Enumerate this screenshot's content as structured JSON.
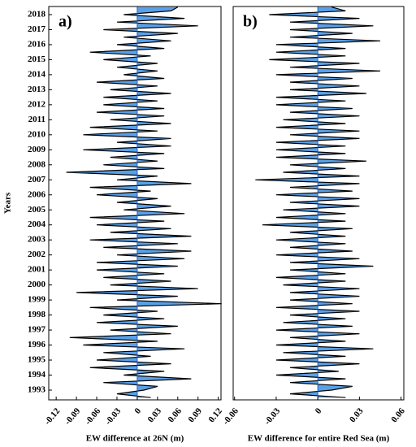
{
  "chart_data": [
    {
      "type": "area",
      "orientation": "vertical",
      "label": "a)",
      "xlabel": "Years",
      "ylabel": "EW difference at 26N (m)",
      "color": "#5aa0e8",
      "line_color": "#000000",
      "x": [
        1992.5,
        1992.75,
        1993,
        1993.25,
        1993.5,
        1993.75,
        1994,
        1994.25,
        1994.5,
        1994.75,
        1995,
        1995.25,
        1995.5,
        1995.75,
        1996,
        1996.25,
        1996.5,
        1996.75,
        1997,
        1997.25,
        1997.5,
        1997.75,
        1998,
        1998.25,
        1998.5,
        1998.75,
        1999,
        1999.25,
        1999.5,
        1999.75,
        2000,
        2000.25,
        2000.5,
        2000.75,
        2001,
        2001.25,
        2001.5,
        2001.75,
        2002,
        2002.25,
        2002.5,
        2002.75,
        2003,
        2003.25,
        2003.5,
        2003.75,
        2004,
        2004.25,
        2004.5,
        2004.75,
        2005,
        2005.25,
        2005.5,
        2005.75,
        2006,
        2006.25,
        2006.5,
        2006.75,
        2007,
        2007.25,
        2007.5,
        2007.75,
        2008,
        2008.25,
        2008.5,
        2008.75,
        2009,
        2009.25,
        2009.5,
        2009.75,
        2010,
        2010.25,
        2010.5,
        2010.75,
        2011,
        2011.25,
        2011.5,
        2011.75,
        2012,
        2012.25,
        2012.5,
        2012.75,
        2013,
        2013.25,
        2013.5,
        2013.75,
        2014,
        2014.25,
        2014.5,
        2014.75,
        2015,
        2015.25,
        2015.5,
        2015.75,
        2016,
        2016.25,
        2016.5,
        2016.75,
        2017,
        2017.25,
        2017.5,
        2017.75,
        2018,
        2018.25,
        2018.5
      ],
      "values": [
        0.02,
        -0.03,
        0.01,
        0.03,
        -0.05,
        0.08,
        -0.02,
        0.04,
        -0.07,
        0.05,
        -0.06,
        0.02,
        -0.05,
        0.07,
        -0.08,
        0.03,
        -0.1,
        0.05,
        -0.04,
        0.06,
        -0.06,
        0.04,
        -0.05,
        0.03,
        -0.07,
        0.125,
        -0.03,
        0.06,
        -0.09,
        0.09,
        -0.04,
        0.05,
        -0.05,
        0.04,
        -0.06,
        0.06,
        -0.06,
        0.07,
        -0.03,
        0.08,
        -0.05,
        0.06,
        -0.07,
        0.08,
        -0.04,
        0.05,
        -0.06,
        0.04,
        -0.07,
        0.07,
        -0.02,
        0.05,
        -0.03,
        0.03,
        -0.06,
        0.02,
        -0.07,
        0.08,
        -0.03,
        0.03,
        -0.105,
        0.04,
        -0.05,
        0.03,
        -0.04,
        0.04,
        -0.08,
        0.05,
        -0.03,
        0.05,
        -0.08,
        0.03,
        -0.07,
        0.05,
        -0.04,
        0.04,
        -0.06,
        0.04,
        -0.05,
        0.03,
        -0.05,
        0.05,
        -0.04,
        0.03,
        -0.06,
        0.04,
        -0.02,
        0.03,
        -0.03,
        0.03,
        -0.05,
        0.02,
        -0.07,
        0.04,
        -0.03,
        0.05,
        -0.02,
        0.06,
        -0.05,
        0.09,
        -0.03,
        0.07,
        -0.02,
        0.05,
        0.06
      ],
      "xlim": [
        1992.35,
        2018.54
      ],
      "xticks": [
        1993,
        1994,
        1995,
        1996,
        1997,
        1998,
        1999,
        2000,
        2001,
        2002,
        2003,
        2004,
        2005,
        2006,
        2007,
        2008,
        2009,
        2010,
        2011,
        2012,
        2013,
        2014,
        2015,
        2016,
        2017,
        2018
      ],
      "ylim": [
        -0.131,
        0.124
      ],
      "yticks": [
        -0.12,
        -0.09,
        -0.06,
        -0.03,
        0,
        0.03,
        0.06,
        0.09,
        0.12
      ]
    },
    {
      "type": "area",
      "orientation": "vertical",
      "label": "b)",
      "ylabel": "EW difference for entire Red Sea (m)",
      "color": "#5aa0e8",
      "line_color": "#000000",
      "x": [
        1992.5,
        1992.75,
        1993,
        1993.25,
        1993.5,
        1993.75,
        1994,
        1994.25,
        1994.5,
        1994.75,
        1995,
        1995.25,
        1995.5,
        1995.75,
        1996,
        1996.25,
        1996.5,
        1996.75,
        1997,
        1997.25,
        1997.5,
        1997.75,
        1998,
        1998.25,
        1998.5,
        1998.75,
        1999,
        1999.25,
        1999.5,
        1999.75,
        2000,
        2000.25,
        2000.5,
        2000.75,
        2001,
        2001.25,
        2001.5,
        2001.75,
        2002,
        2002.25,
        2002.5,
        2002.75,
        2003,
        2003.25,
        2003.5,
        2003.75,
        2004,
        2004.25,
        2004.5,
        2004.75,
        2005,
        2005.25,
        2005.5,
        2005.75,
        2006,
        2006.25,
        2006.5,
        2006.75,
        2007,
        2007.25,
        2007.5,
        2007.75,
        2008,
        2008.25,
        2008.5,
        2008.75,
        2009,
        2009.25,
        2009.5,
        2009.75,
        2010,
        2010.25,
        2010.5,
        2010.75,
        2011,
        2011.25,
        2011.5,
        2011.75,
        2012,
        2012.25,
        2012.5,
        2012.75,
        2013,
        2013.25,
        2013.5,
        2013.75,
        2014,
        2014.25,
        2014.5,
        2014.75,
        2015,
        2015.25,
        2015.5,
        2015.75,
        2016,
        2016.25,
        2016.5,
        2016.75,
        2017,
        2017.25,
        2017.5,
        2017.75,
        2018,
        2018.25,
        2018.5
      ],
      "values": [
        0.02,
        -0.02,
        0.01,
        0.025,
        -0.02,
        0.02,
        -0.03,
        0.015,
        -0.02,
        0.03,
        -0.03,
        0.02,
        -0.025,
        0.04,
        -0.03,
        0.02,
        -0.02,
        0.03,
        -0.03,
        0.025,
        -0.025,
        0.02,
        -0.02,
        0.03,
        -0.03,
        0.025,
        -0.02,
        0.03,
        -0.02,
        0.03,
        -0.025,
        0.02,
        -0.03,
        0.02,
        -0.02,
        0.04,
        -0.02,
        0.03,
        -0.03,
        0.025,
        -0.02,
        0.02,
        -0.03,
        0.02,
        -0.02,
        0.025,
        -0.04,
        0.02,
        -0.03,
        0.02,
        -0.025,
        0.03,
        -0.02,
        0.03,
        -0.03,
        0.025,
        -0.02,
        0.03,
        -0.045,
        0.03,
        -0.025,
        0.02,
        -0.02,
        0.035,
        -0.03,
        0.02,
        -0.03,
        0.02,
        -0.03,
        0.03,
        -0.02,
        0.03,
        -0.03,
        0.02,
        -0.025,
        0.03,
        -0.02,
        0.025,
        -0.03,
        0.02,
        -0.03,
        0.035,
        -0.02,
        0.03,
        -0.02,
        0.025,
        -0.03,
        0.045,
        -0.02,
        0.03,
        -0.035,
        0.02,
        -0.03,
        0.02,
        -0.03,
        0.045,
        -0.02,
        0.025,
        -0.02,
        0.04,
        -0.02,
        0.03,
        -0.035,
        0.02,
        0.01
      ],
      "xlim": [
        1992.35,
        2018.54
      ],
      "ylim": [
        -0.061,
        0.062
      ],
      "yticks": [
        -0.06,
        -0.03,
        0,
        0.03,
        0.06
      ]
    }
  ]
}
